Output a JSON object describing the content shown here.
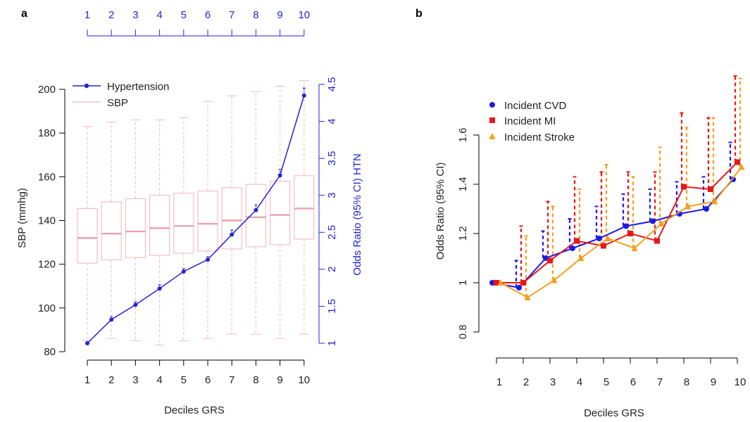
{
  "colors": {
    "hypertension": "#2323d8",
    "sbp_box": "#f4c4cc",
    "cvd": "#1a1ae6",
    "mi": "#e8161a",
    "stroke": "#f4a01c",
    "axis": "#000000"
  },
  "chart_data": [
    {
      "panel_label": "a",
      "type": "box+line",
      "xlabel": "Deciles GRS",
      "ylabel_left": "SBP (mmhg)",
      "ylabel_right": "Odds Ratio (95% CI) HTN",
      "categories": [
        "1",
        "2",
        "3",
        "4",
        "5",
        "6",
        "7",
        "8",
        "9",
        "10"
      ],
      "top_axis_ticks": [
        "1",
        "2",
        "3",
        "4",
        "5",
        "6",
        "7",
        "8",
        "9",
        "10"
      ],
      "ylim_left": [
        80,
        200
      ],
      "yticks_left": [
        "80",
        "100",
        "120",
        "140",
        "160",
        "180",
        "200"
      ],
      "ylim_right": [
        1,
        4.5
      ],
      "yticks_right": [
        "1",
        "1.5",
        "2",
        "2.5",
        "3",
        "3.5",
        "4",
        "4.5"
      ],
      "legend": [
        "Hypertension",
        "SBP"
      ],
      "legend_position": "top-left",
      "sbp_boxes": [
        {
          "whisker_low": 85,
          "q1": 120.5,
          "median": 132,
          "q3": 145.5,
          "whisker_high": 183
        },
        {
          "whisker_low": 86,
          "q1": 122,
          "median": 134,
          "q3": 148.5,
          "whisker_high": 185
        },
        {
          "whisker_low": 85,
          "q1": 123,
          "median": 135,
          "q3": 150,
          "whisker_high": 186
        },
        {
          "whisker_low": 83,
          "q1": 124,
          "median": 136.5,
          "q3": 151.5,
          "whisker_high": 186
        },
        {
          "whisker_low": 85,
          "q1": 125,
          "median": 137.5,
          "q3": 152.5,
          "whisker_high": 187
        },
        {
          "whisker_low": 86,
          "q1": 126,
          "median": 138.5,
          "q3": 153.5,
          "whisker_high": 194.5
        },
        {
          "whisker_low": 88,
          "q1": 127,
          "median": 140,
          "q3": 155,
          "whisker_high": 197
        },
        {
          "whisker_low": 88,
          "q1": 128,
          "median": 141.5,
          "q3": 156.5,
          "whisker_high": 199
        },
        {
          "whisker_low": 86,
          "q1": 129,
          "median": 142.5,
          "q3": 158,
          "whisker_high": 201.5
        },
        {
          "whisker_low": 88,
          "q1": 131.5,
          "median": 145.5,
          "q3": 160.5,
          "whisker_high": 204
        }
      ],
      "hypertension_or": [
        {
          "or": 1.0,
          "upper": 1.0
        },
        {
          "or": 1.32,
          "upper": 1.36
        },
        {
          "or": 1.52,
          "upper": 1.56
        },
        {
          "or": 1.74,
          "upper": 1.79
        },
        {
          "or": 1.97,
          "upper": 2.01
        },
        {
          "or": 2.13,
          "upper": 2.17
        },
        {
          "or": 2.47,
          "upper": 2.53
        },
        {
          "or": 2.8,
          "upper": 2.87
        },
        {
          "or": 3.27,
          "upper": 3.35
        },
        {
          "or": 4.35,
          "upper": 4.45
        }
      ]
    },
    {
      "panel_label": "b",
      "type": "line",
      "xlabel": "Deciles GRS",
      "ylabel": "Odds Ratio (95% CI)",
      "categories": [
        "1",
        "2",
        "3",
        "4",
        "5",
        "6",
        "7",
        "8",
        "9",
        "10"
      ],
      "ylim": [
        0.75,
        1.65
      ],
      "yticks": [
        "0.8",
        "1",
        "1.2",
        "1.4",
        "1.6"
      ],
      "legend_position": "top-left",
      "series": [
        {
          "name": "Incident CVD",
          "values": [
            1.0,
            0.98,
            1.1,
            1.14,
            1.18,
            1.23,
            1.25,
            1.28,
            1.3,
            1.42
          ],
          "upper": [
            1.0,
            1.09,
            1.21,
            1.26,
            1.31,
            1.36,
            1.38,
            1.41,
            1.43,
            1.57
          ]
        },
        {
          "name": "Incident MI",
          "values": [
            1.0,
            1.0,
            1.09,
            1.17,
            1.15,
            1.2,
            1.17,
            1.39,
            1.38,
            1.49
          ],
          "upper": [
            1.0,
            1.23,
            1.33,
            1.43,
            1.45,
            1.45,
            1.45,
            1.69,
            1.67,
            1.84
          ]
        },
        {
          "name": "Incident Stroke",
          "values": [
            1.0,
            0.94,
            1.01,
            1.1,
            1.18,
            1.14,
            1.24,
            1.31,
            1.33,
            1.47
          ],
          "upper": [
            1.0,
            1.19,
            1.31,
            1.38,
            1.48,
            1.43,
            1.55,
            1.63,
            1.67,
            1.83
          ]
        }
      ]
    }
  ]
}
